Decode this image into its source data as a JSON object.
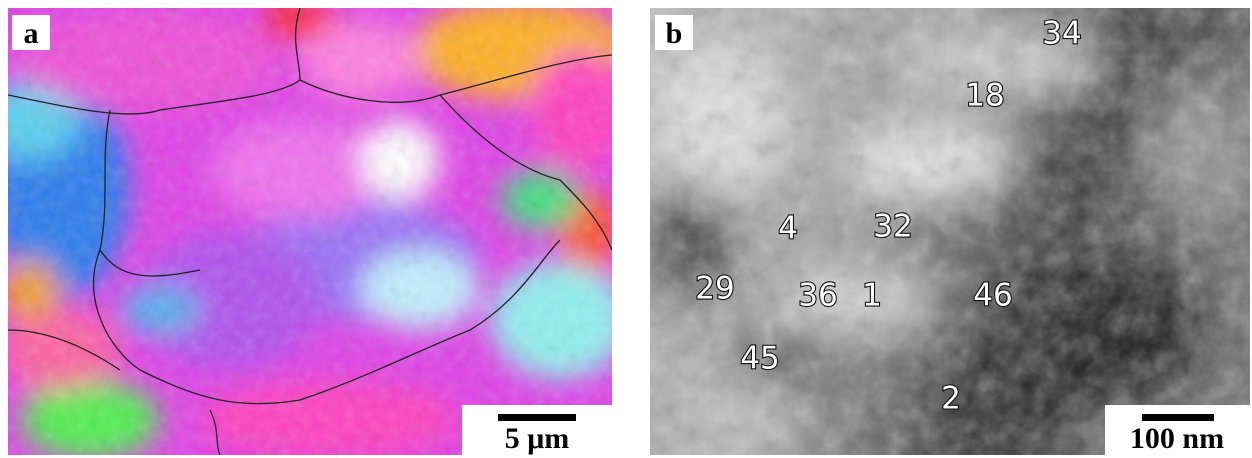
{
  "panels": [
    {
      "label": "a",
      "scale_bar": "5 μm"
    },
    {
      "label": "b",
      "scale_bar": "100 nm",
      "annotations": [
        "34",
        "18",
        "4",
        "32",
        "29",
        "36",
        "1",
        "46",
        "45",
        "2"
      ]
    }
  ]
}
